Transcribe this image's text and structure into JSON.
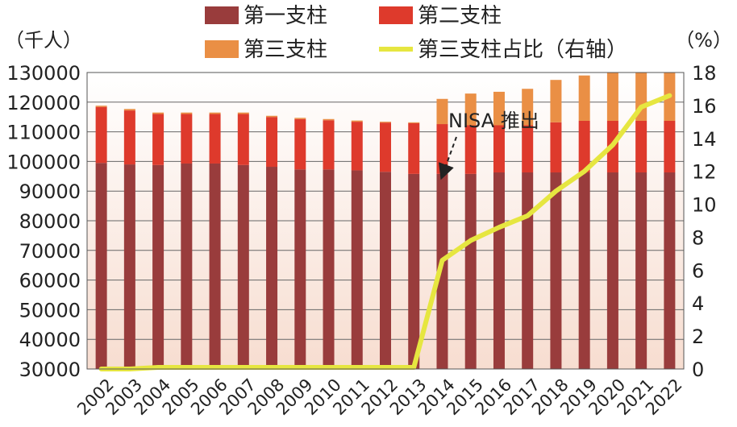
{
  "chart_data": {
    "type": "bar",
    "stacked": true,
    "categories": [
      "2002",
      "2003",
      "2004",
      "2005",
      "2006",
      "2007",
      "2008",
      "2009",
      "2010",
      "2011",
      "2012",
      "2013",
      "2014",
      "2015",
      "2016",
      "2017",
      "2018",
      "2019",
      "2020",
      "2021",
      "2022"
    ],
    "series": [
      {
        "name": "第一支柱",
        "color": "#993c3c",
        "values": [
          69500,
          69000,
          68800,
          69300,
          69300,
          68800,
          68200,
          67300,
          67300,
          67000,
          66500,
          65800,
          65800,
          65800,
          66300,
          66300,
          66300,
          66300,
          66300,
          66300,
          66300
        ]
      },
      {
        "name": "第二支柱",
        "color": "#de3a2c",
        "values": [
          18900,
          18200,
          17200,
          16700,
          16700,
          17200,
          16800,
          17000,
          16600,
          16400,
          16600,
          17100,
          16800,
          16400,
          15900,
          15900,
          16900,
          17400,
          17400,
          17400,
          17400
        ]
      },
      {
        "name": "第三支柱",
        "color": "#ea8f45",
        "values": [
          400,
          500,
          500,
          500,
          500,
          500,
          400,
          400,
          400,
          400,
          300,
          300,
          8500,
          10700,
          11300,
          12300,
          14300,
          15300,
          17500,
          20300,
          21200
        ]
      }
    ],
    "line_series": {
      "name": "第三支柱占比（右轴）",
      "color": "#e6e640",
      "axis": "right",
      "values": [
        0,
        0,
        0.1,
        0.1,
        0.1,
        0.1,
        0.1,
        0.1,
        0.1,
        0.1,
        0.1,
        0.1,
        6.6,
        7.8,
        8.6,
        9.3,
        10.8,
        12.0,
        13.6,
        15.9,
        16.6
      ]
    },
    "ylabel": "（千人）",
    "ylabel_right": "（%）",
    "ylim": [
      30000,
      130000
    ],
    "yticks": [
      "30000",
      "40000",
      "50000",
      "60000",
      "70000",
      "80000",
      "90000",
      "100000",
      "110000",
      "120000",
      "130000"
    ],
    "ylim_right": [
      0,
      18
    ],
    "yticks_right": [
      "0",
      "2",
      "4",
      "6",
      "8",
      "10",
      "12",
      "14",
      "16",
      "18"
    ],
    "annotation": {
      "text": "NISA 推出",
      "category": "2014"
    },
    "grid": true,
    "legend_position": "top"
  }
}
